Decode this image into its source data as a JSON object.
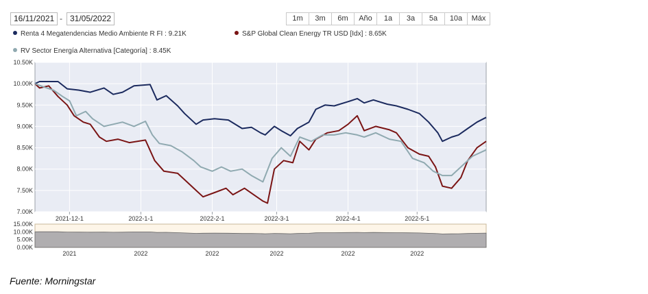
{
  "date_range": {
    "start": "16/11/2021",
    "separator": "-",
    "end": "31/05/2022"
  },
  "range_buttons": [
    "1m",
    "3m",
    "6m",
    "Año",
    "1a",
    "3a",
    "5a",
    "10a",
    "Máx"
  ],
  "legend": [
    {
      "label": "Renta 4 Megatendencias Medio Ambiente R FI : 9.21K",
      "color": "#1b2a5e"
    },
    {
      "label": "S&P Global Clean Energy TR USD [Idx] : 8.65K",
      "color": "#7a1414"
    },
    {
      "label": "RV Sector Energía Alternativa [Categoría] : 8.45K",
      "color": "#8fa9b0"
    }
  ],
  "source_note": "Fuente: Morningstar",
  "navigator": {
    "y_ticks": [
      "15.00K",
      "10.00K",
      "5.00K",
      "0.00K"
    ],
    "x_labels": [
      "2021",
      "2022",
      "2022",
      "2022",
      "2022",
      "2022"
    ]
  },
  "chart_data": {
    "type": "line",
    "y_ticks": [
      "10.50K",
      "10.00K",
      "9.50K",
      "9.00K",
      "8.50K",
      "8.00K",
      "7.50K",
      "7.00K"
    ],
    "ylim": [
      7000,
      10500
    ],
    "x_ticks": [
      "2021-12-1",
      "2022-1-1",
      "2022-2-1",
      "2022-3-1",
      "2022-4-1",
      "2022-5-1"
    ],
    "x_range": [
      "2021-11-16",
      "2022-05-31"
    ],
    "grid": true,
    "series": [
      {
        "name": "Renta 4 Megatendencias Medio Ambiente R FI",
        "color": "#1b2a5e",
        "points": [
          [
            "2021-11-16",
            10000
          ],
          [
            "2021-11-18",
            10050
          ],
          [
            "2021-11-22",
            10050
          ],
          [
            "2021-11-26",
            10050
          ],
          [
            "2021-11-30",
            9880
          ],
          [
            "2021-12-05",
            9850
          ],
          [
            "2021-12-10",
            9800
          ],
          [
            "2021-12-16",
            9900
          ],
          [
            "2021-12-20",
            9750
          ],
          [
            "2021-12-24",
            9800
          ],
          [
            "2021-12-29",
            9950
          ],
          [
            "2022-01-05",
            9980
          ],
          [
            "2022-01-08",
            9620
          ],
          [
            "2022-01-12",
            9720
          ],
          [
            "2022-01-17",
            9480
          ],
          [
            "2022-01-20",
            9300
          ],
          [
            "2022-01-25",
            9050
          ],
          [
            "2022-01-28",
            9150
          ],
          [
            "2022-02-02",
            9180
          ],
          [
            "2022-02-08",
            9150
          ],
          [
            "2022-02-14",
            8950
          ],
          [
            "2022-02-18",
            8980
          ],
          [
            "2022-02-22",
            8850
          ],
          [
            "2022-02-24",
            8800
          ],
          [
            "2022-02-28",
            9000
          ],
          [
            "2022-03-03",
            8900
          ],
          [
            "2022-03-07",
            8780
          ],
          [
            "2022-03-10",
            8950
          ],
          [
            "2022-03-15",
            9100
          ],
          [
            "2022-03-18",
            9400
          ],
          [
            "2022-03-22",
            9500
          ],
          [
            "2022-03-26",
            9480
          ],
          [
            "2022-04-01",
            9580
          ],
          [
            "2022-04-05",
            9650
          ],
          [
            "2022-04-08",
            9550
          ],
          [
            "2022-04-12",
            9620
          ],
          [
            "2022-04-18",
            9520
          ],
          [
            "2022-04-22",
            9480
          ],
          [
            "2022-04-27",
            9400
          ],
          [
            "2022-05-02",
            9300
          ],
          [
            "2022-05-06",
            9100
          ],
          [
            "2022-05-10",
            8850
          ],
          [
            "2022-05-12",
            8650
          ],
          [
            "2022-05-16",
            8750
          ],
          [
            "2022-05-19",
            8800
          ],
          [
            "2022-05-23",
            8950
          ],
          [
            "2022-05-27",
            9100
          ],
          [
            "2022-05-31",
            9210
          ]
        ]
      },
      {
        "name": "S&P Global Clean Energy TR USD [Idx]",
        "color": "#7a1414",
        "points": [
          [
            "2021-11-16",
            10000
          ],
          [
            "2021-11-18",
            9900
          ],
          [
            "2021-11-22",
            9950
          ],
          [
            "2021-11-26",
            9700
          ],
          [
            "2021-11-30",
            9500
          ],
          [
            "2021-12-03",
            9250
          ],
          [
            "2021-12-07",
            9100
          ],
          [
            "2021-12-10",
            9050
          ],
          [
            "2021-12-14",
            8750
          ],
          [
            "2021-12-17",
            8650
          ],
          [
            "2021-12-22",
            8700
          ],
          [
            "2021-12-27",
            8620
          ],
          [
            "2022-01-03",
            8680
          ],
          [
            "2022-01-07",
            8200
          ],
          [
            "2022-01-11",
            7950
          ],
          [
            "2022-01-17",
            7900
          ],
          [
            "2022-01-21",
            7700
          ],
          [
            "2022-01-25",
            7500
          ],
          [
            "2022-01-28",
            7350
          ],
          [
            "2022-02-02",
            7450
          ],
          [
            "2022-02-07",
            7550
          ],
          [
            "2022-02-10",
            7400
          ],
          [
            "2022-02-15",
            7550
          ],
          [
            "2022-02-19",
            7400
          ],
          [
            "2022-02-23",
            7250
          ],
          [
            "2022-02-25",
            7200
          ],
          [
            "2022-02-28",
            8000
          ],
          [
            "2022-03-04",
            8200
          ],
          [
            "2022-03-08",
            8150
          ],
          [
            "2022-03-11",
            8650
          ],
          [
            "2022-03-15",
            8450
          ],
          [
            "2022-03-18",
            8700
          ],
          [
            "2022-03-23",
            8850
          ],
          [
            "2022-03-28",
            8900
          ],
          [
            "2022-04-01",
            9050
          ],
          [
            "2022-04-05",
            9250
          ],
          [
            "2022-04-08",
            8900
          ],
          [
            "2022-04-13",
            9000
          ],
          [
            "2022-04-19",
            8920
          ],
          [
            "2022-04-22",
            8850
          ],
          [
            "2022-04-27",
            8500
          ],
          [
            "2022-05-02",
            8350
          ],
          [
            "2022-05-06",
            8300
          ],
          [
            "2022-05-09",
            8050
          ],
          [
            "2022-05-12",
            7600
          ],
          [
            "2022-05-16",
            7550
          ],
          [
            "2022-05-20",
            7800
          ],
          [
            "2022-05-23",
            8200
          ],
          [
            "2022-05-27",
            8500
          ],
          [
            "2022-05-31",
            8650
          ]
        ]
      },
      {
        "name": "RV Sector Energía Alternativa [Categoría]",
        "color": "#8fa9b0",
        "points": [
          [
            "2021-11-16",
            10000
          ],
          [
            "2021-11-20",
            9920
          ],
          [
            "2021-11-24",
            9850
          ],
          [
            "2021-11-28",
            9700
          ],
          [
            "2021-12-01",
            9600
          ],
          [
            "2021-12-04",
            9250
          ],
          [
            "2021-12-08",
            9350
          ],
          [
            "2021-12-11",
            9180
          ],
          [
            "2021-12-16",
            9000
          ],
          [
            "2021-12-20",
            9050
          ],
          [
            "2021-12-24",
            9100
          ],
          [
            "2021-12-29",
            9000
          ],
          [
            "2022-01-03",
            9120
          ],
          [
            "2022-01-06",
            8800
          ],
          [
            "2022-01-09",
            8600
          ],
          [
            "2022-01-14",
            8550
          ],
          [
            "2022-01-19",
            8400
          ],
          [
            "2022-01-24",
            8200
          ],
          [
            "2022-01-27",
            8050
          ],
          [
            "2022-02-01",
            7950
          ],
          [
            "2022-02-05",
            8050
          ],
          [
            "2022-02-09",
            7950
          ],
          [
            "2022-02-14",
            8000
          ],
          [
            "2022-02-18",
            7850
          ],
          [
            "2022-02-23",
            7700
          ],
          [
            "2022-02-27",
            8250
          ],
          [
            "2022-03-03",
            8500
          ],
          [
            "2022-03-07",
            8300
          ],
          [
            "2022-03-11",
            8750
          ],
          [
            "2022-03-16",
            8650
          ],
          [
            "2022-03-21",
            8800
          ],
          [
            "2022-03-26",
            8800
          ],
          [
            "2022-03-31",
            8850
          ],
          [
            "2022-04-05",
            8800
          ],
          [
            "2022-04-08",
            8750
          ],
          [
            "2022-04-13",
            8850
          ],
          [
            "2022-04-19",
            8700
          ],
          [
            "2022-04-24",
            8650
          ],
          [
            "2022-04-29",
            8250
          ],
          [
            "2022-05-04",
            8150
          ],
          [
            "2022-05-08",
            7950
          ],
          [
            "2022-05-12",
            7850
          ],
          [
            "2022-05-16",
            7850
          ],
          [
            "2022-05-20",
            8050
          ],
          [
            "2022-05-25",
            8300
          ],
          [
            "2022-05-31",
            8450
          ]
        ]
      }
    ]
  }
}
